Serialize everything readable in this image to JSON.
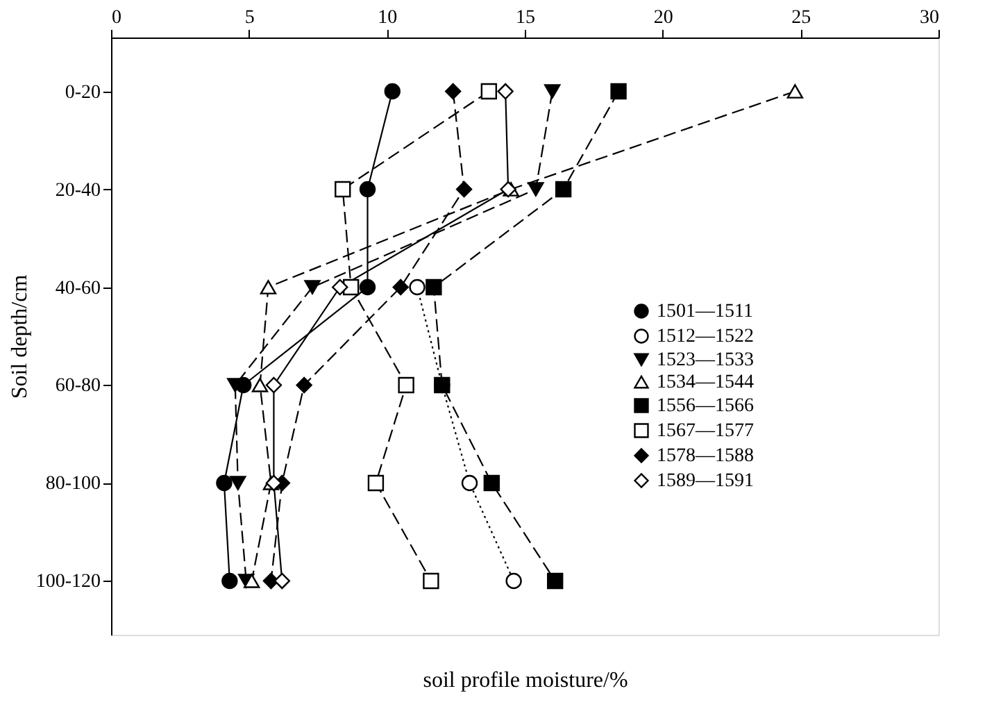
{
  "chart_data": {
    "type": "line",
    "orientation": "horizontal",
    "xlabel": "soil profile moisture/%",
    "ylabel": "Soil depth/cm",
    "categories": [
      "0-20",
      "20-40",
      "40-60",
      "60-80",
      "80-100",
      "100-120"
    ],
    "xlim": [
      0,
      30
    ],
    "xticks": [
      0,
      5,
      10,
      15,
      20,
      25,
      30
    ],
    "grid": false,
    "legend": "right",
    "series": [
      {
        "name": "1501—1511",
        "color": "#000000",
        "marker": "circle",
        "line_style": "solid",
        "values": [
          10.2,
          9.3,
          9.3,
          4.8,
          4.1,
          4.3
        ]
      },
      {
        "name": "1512—1522",
        "color": "#000000",
        "marker": "circle",
        "line_style": "dotted",
        "values": [
          null,
          null,
          11.1,
          12.0,
          13.0,
          14.6
        ]
      },
      {
        "name": "1523—1533",
        "color": "#000000",
        "marker": "triangle-down",
        "line_style": "dashed",
        "values": [
          16.0,
          15.4,
          7.3,
          4.5,
          4.6,
          4.9
        ]
      },
      {
        "name": "1534—1544",
        "color": "#000000",
        "marker": "triangle-up",
        "line_style": "dashed",
        "values": [
          24.8,
          14.5,
          5.7,
          5.4,
          5.8,
          5.1
        ]
      },
      {
        "name": "1556—1566",
        "color": "#000000",
        "marker": "square",
        "line_style": "dashed",
        "values": [
          18.4,
          16.4,
          11.7,
          12.0,
          13.8,
          16.1
        ]
      },
      {
        "name": "1567—1577",
        "color": "#000000",
        "marker": "square",
        "line_style": "dashed",
        "values": [
          13.7,
          8.4,
          8.7,
          10.7,
          9.6,
          11.6
        ]
      },
      {
        "name": "1578—1588",
        "color": "#000000",
        "marker": "diamond",
        "line_style": "dashed",
        "values": [
          12.4,
          12.8,
          10.5,
          7.0,
          6.2,
          5.8
        ]
      },
      {
        "name": "1589—1591",
        "color": "#000000",
        "marker": "diamond",
        "line_style": "solid",
        "values": [
          14.3,
          14.4,
          8.3,
          5.9,
          5.9,
          6.2
        ]
      }
    ]
  }
}
